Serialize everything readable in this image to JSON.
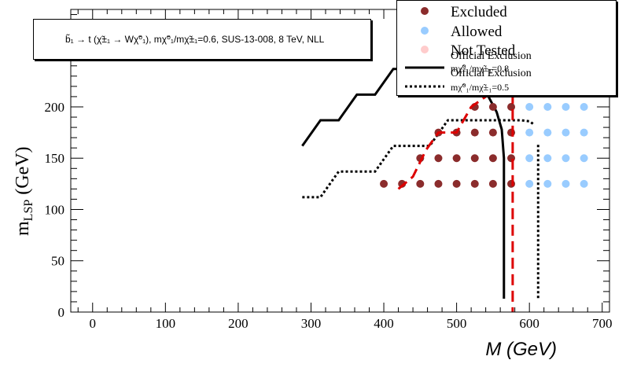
{
  "title_text": "b̃₁ → t (χ̃±₁ → Wχ̃⁰₁), mχ̃⁰₁/mχ̃±₁=0.6, SUS-13-008, 8 TeV, NLL",
  "legend": {
    "excluded": "Excluded",
    "allowed": "Allowed",
    "not_tested": "Not Tested",
    "official_08_line1": "Official Exclusion",
    "official_08_line2": "mχ̃⁰₁/mχ̃±₁=0.8",
    "official_05_line1": "Official Exclusion",
    "official_05_line2": "mχ̃⁰₁/mχ̃±₁=0.5"
  },
  "chart_data": {
    "type": "scatter",
    "xlabel": "M (GeV)",
    "ylabel": "m_LSP (GeV)",
    "xlim": [
      -30,
      710
    ],
    "ylim": [
      0,
      295
    ],
    "xticks": [
      0,
      100,
      200,
      300,
      400,
      500,
      600,
      700
    ],
    "yticks": [
      0,
      50,
      100,
      150,
      200
    ],
    "colors": {
      "excluded": "#8b2c2c",
      "allowed": "#99ccff",
      "not_tested": "#ffcccc",
      "official_08": "#000000",
      "official_05": "#000000",
      "red_exclusion": "#dd0000"
    },
    "excluded_points": [
      [
        400,
        125
      ],
      [
        425,
        125
      ],
      [
        450,
        125
      ],
      [
        475,
        125
      ],
      [
        500,
        125
      ],
      [
        525,
        125
      ],
      [
        550,
        125
      ],
      [
        575,
        125
      ],
      [
        450,
        150
      ],
      [
        475,
        150
      ],
      [
        500,
        150
      ],
      [
        525,
        150
      ],
      [
        550,
        150
      ],
      [
        575,
        150
      ],
      [
        475,
        175
      ],
      [
        500,
        175
      ],
      [
        525,
        175
      ],
      [
        550,
        175
      ],
      [
        575,
        175
      ],
      [
        525,
        200
      ],
      [
        550,
        200
      ],
      [
        575,
        200
      ]
    ],
    "allowed_points": [
      [
        600,
        125
      ],
      [
        625,
        125
      ],
      [
        650,
        125
      ],
      [
        675,
        125
      ],
      [
        600,
        150
      ],
      [
        625,
        150
      ],
      [
        650,
        150
      ],
      [
        675,
        150
      ],
      [
        600,
        175
      ],
      [
        625,
        175
      ],
      [
        650,
        175
      ],
      [
        675,
        175
      ],
      [
        600,
        200
      ],
      [
        625,
        200
      ],
      [
        650,
        200
      ],
      [
        675,
        200
      ]
    ],
    "official_exclusion_08": [
      [
        288,
        162
      ],
      [
        313,
        187
      ],
      [
        338,
        187
      ],
      [
        363,
        212
      ],
      [
        388,
        212
      ],
      [
        413,
        237
      ],
      [
        438,
        237
      ],
      [
        463,
        262
      ],
      [
        475,
        262
      ],
      [
        500,
        262
      ],
      [
        520,
        240
      ],
      [
        540,
        215
      ],
      [
        555,
        195
      ],
      [
        562,
        178
      ],
      [
        565,
        150
      ],
      [
        565,
        100
      ],
      [
        565,
        13
      ]
    ],
    "official_exclusion_05": [
      [
        288,
        112
      ],
      [
        313,
        112
      ],
      [
        338,
        137
      ],
      [
        363,
        137
      ],
      [
        388,
        137
      ],
      [
        413,
        162
      ],
      [
        438,
        162
      ],
      [
        463,
        162
      ],
      [
        488,
        187
      ],
      [
        513,
        187
      ],
      [
        538,
        187
      ],
      [
        563,
        187
      ],
      [
        588,
        187
      ],
      [
        600,
        186
      ],
      [
        606,
        183
      ]
    ],
    "official_exclusion_05_vertical": [
      [
        612,
        163
      ],
      [
        612,
        13
      ]
    ],
    "red_exclusion": [
      [
        420,
        120
      ],
      [
        440,
        132
      ],
      [
        458,
        158
      ],
      [
        475,
        175
      ],
      [
        500,
        175
      ],
      [
        520,
        200
      ],
      [
        540,
        210
      ],
      [
        548,
        220
      ]
    ],
    "red_exclusion_vertical": [
      [
        577,
        230
      ],
      [
        577,
        0
      ]
    ]
  }
}
